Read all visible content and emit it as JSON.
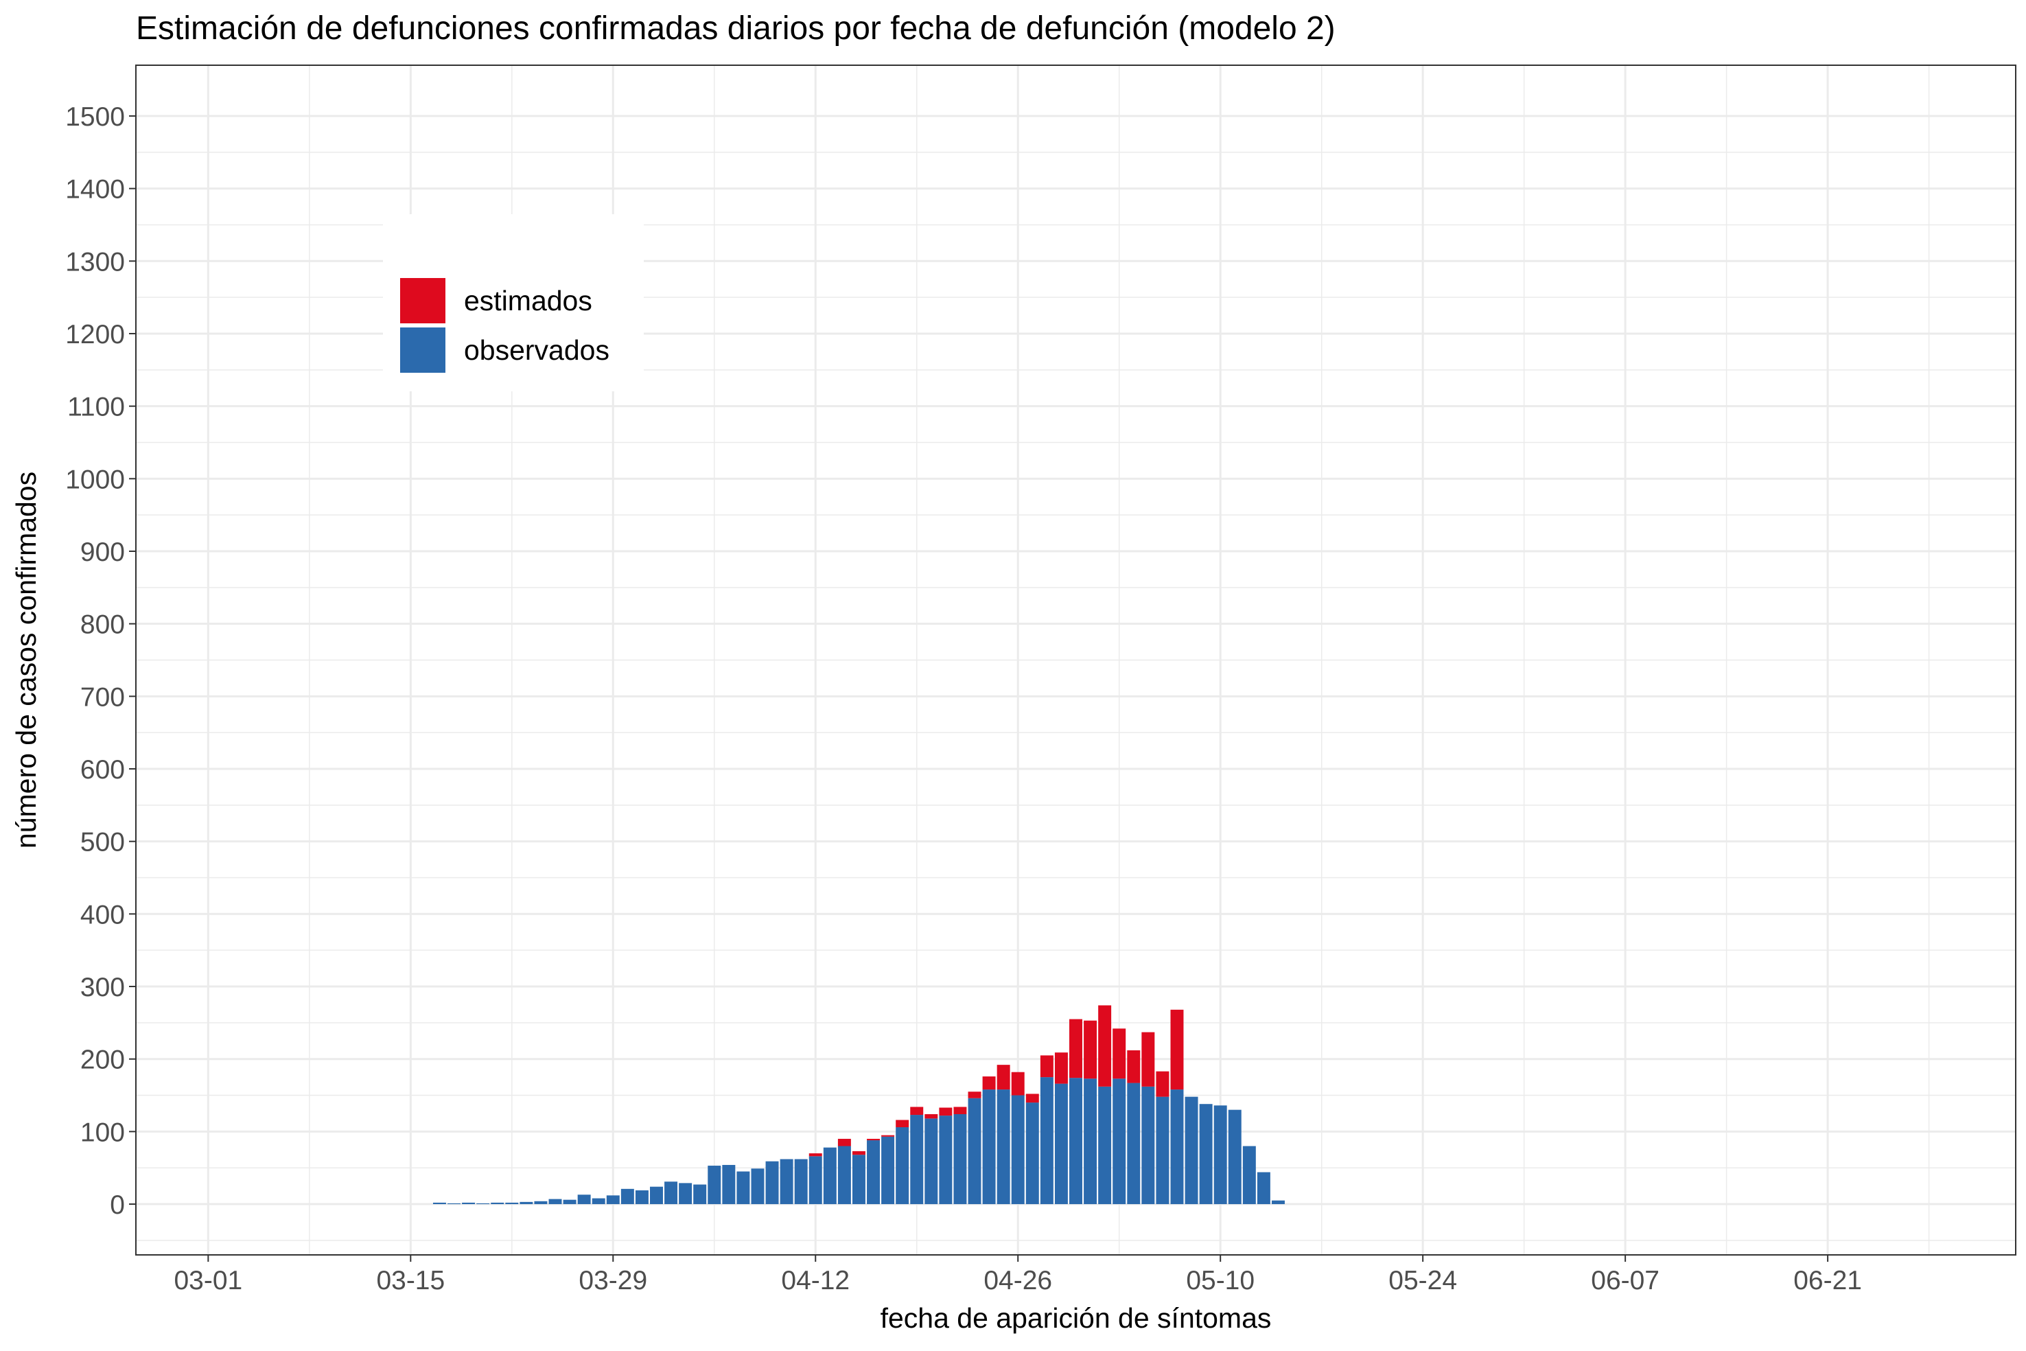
{
  "chart_data": {
    "type": "bar",
    "stacked": true,
    "title": "Estimación de defunciones confirmadas diarios por fecha de defunción (modelo 2)",
    "xlabel": "fecha de aparición de síntomas",
    "ylabel": "número de casos confirmados",
    "x_tick_labels": [
      "03-01",
      "03-15",
      "03-29",
      "04-12",
      "04-26",
      "05-10",
      "05-24",
      "06-07",
      "06-21"
    ],
    "y_ticks": [
      0,
      100,
      200,
      300,
      400,
      500,
      600,
      700,
      800,
      900,
      1000,
      1100,
      1200,
      1300,
      1400,
      1500
    ],
    "ylim": [
      -70,
      1570
    ],
    "xlim": [
      "02-25",
      "07-04"
    ],
    "grid": true,
    "legend_position": "top-left (inside plot)",
    "categories": [
      "03-17",
      "03-18",
      "03-19",
      "03-20",
      "03-21",
      "03-22",
      "03-23",
      "03-24",
      "03-25",
      "03-26",
      "03-27",
      "03-28",
      "03-29",
      "03-30",
      "03-31",
      "04-01",
      "04-02",
      "04-03",
      "04-04",
      "04-05",
      "04-06",
      "04-07",
      "04-08",
      "04-09",
      "04-10",
      "04-11",
      "04-12",
      "04-13",
      "04-14",
      "04-15",
      "04-16",
      "04-17",
      "04-18",
      "04-19",
      "04-20",
      "04-21",
      "04-22",
      "04-23",
      "04-24",
      "04-25",
      "04-26",
      "04-27",
      "04-28",
      "04-29",
      "04-30",
      "05-01",
      "05-02",
      "05-03",
      "05-04",
      "05-05",
      "05-06",
      "05-07",
      "05-08",
      "05-09",
      "05-10",
      "05-11",
      "05-12",
      "05-13",
      "05-14",
      "05-15"
    ],
    "series": [
      {
        "name": "observados",
        "color": "#2b6aad",
        "values": [
          2,
          1,
          2,
          1,
          2,
          2,
          3,
          4,
          7,
          6,
          13,
          8,
          12,
          21,
          19,
          24,
          31,
          29,
          27,
          53,
          54,
          45,
          49,
          59,
          62,
          62,
          66,
          78,
          80,
          68,
          88,
          93,
          106,
          123,
          118,
          122,
          124,
          146,
          158,
          158,
          150,
          140,
          175,
          166,
          174,
          173,
          162,
          173,
          167,
          162,
          148,
          158,
          148,
          138,
          136,
          130,
          80,
          44,
          5,
          0
        ],
        "value_format": "count"
      },
      {
        "name": "estimados",
        "color": "#de0a1e",
        "values": [
          0,
          0,
          0,
          0,
          0,
          0,
          0,
          0,
          0,
          0,
          0,
          0,
          0,
          0,
          0,
          0,
          0,
          0,
          0,
          0,
          0,
          0,
          0,
          0,
          0,
          0,
          4,
          0,
          10,
          5,
          2,
          2,
          10,
          11,
          6,
          11,
          10,
          9,
          18,
          34,
          32,
          12,
          30,
          43,
          81,
          80,
          112,
          69,
          45,
          75,
          35,
          110,
          0,
          0,
          0,
          0,
          0,
          0,
          0,
          0
        ],
        "value_format": "count"
      }
    ]
  }
}
